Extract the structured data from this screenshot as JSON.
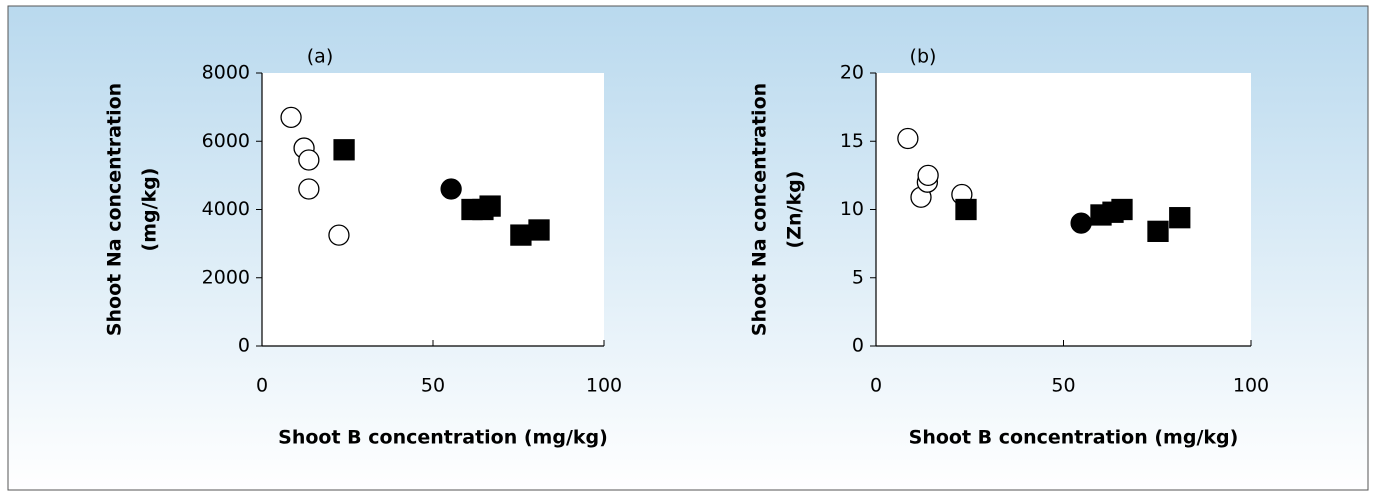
{
  "chart_data": [
    {
      "type": "scatter",
      "title": "(a)",
      "xlabel": "Shoot B concentration (mg/kg)",
      "ylabel": [
        "Shoot Na concentration",
        "(mg/kg)"
      ],
      "xlim": [
        0,
        100
      ],
      "xticks": [
        0,
        50,
        100
      ],
      "ylim": [
        0,
        8000
      ],
      "yticks": [
        0,
        2000,
        4000,
        6000,
        8000
      ],
      "series": [
        {
          "marker": "circle",
          "filled": false,
          "color": "#000000",
          "x": [
            8.5,
            12.3,
            13.7,
            13.7,
            22.5
          ],
          "values": [
            6700,
            5800,
            5450,
            4600,
            3250
          ]
        },
        {
          "marker": "circle",
          "filled": true,
          "color": "#000000",
          "x": [
            55.3
          ],
          "values": [
            4600
          ]
        },
        {
          "marker": "square",
          "filled": true,
          "color": "#000000",
          "x": [
            24,
            61.4,
            64.6,
            66.7,
            75.7,
            81
          ],
          "values": [
            5750,
            4000,
            4000,
            4100,
            3250,
            3400
          ]
        }
      ]
    },
    {
      "type": "scatter",
      "title": "(b)",
      "xlabel": "Shoot B concentration (mg/kg)",
      "ylabel": [
        "Shoot Na concentration",
        "(Zn/kg)"
      ],
      "xlim": [
        0,
        100
      ],
      "xticks": [
        0,
        50,
        100
      ],
      "ylim": [
        0,
        20
      ],
      "yticks": [
        0,
        5,
        10,
        15,
        20
      ],
      "series": [
        {
          "marker": "circle",
          "filled": false,
          "color": "#000000",
          "x": [
            8.5,
            12,
            13.7,
            13.9,
            22.9
          ],
          "values": [
            15.2,
            10.9,
            12.0,
            12.5,
            11.1
          ]
        },
        {
          "marker": "circle",
          "filled": true,
          "color": "#000000",
          "x": [
            54.7
          ],
          "values": [
            9.0
          ]
        },
        {
          "marker": "square",
          "filled": true,
          "color": "#000000",
          "x": [
            24,
            60,
            63.2,
            65.6,
            75.2,
            81
          ],
          "values": [
            10.0,
            9.6,
            9.8,
            10.0,
            8.4,
            9.4
          ]
        }
      ]
    }
  ]
}
